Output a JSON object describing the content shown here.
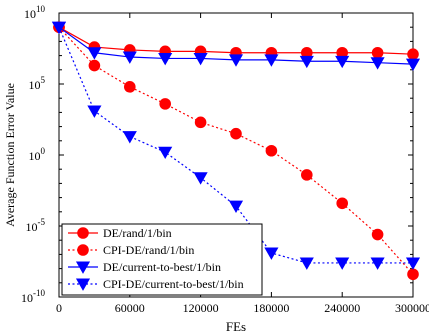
{
  "chart_data": {
    "type": "line",
    "title": "",
    "xlabel": "FEs",
    "ylabel": "Average Function Error Value",
    "xlim": [
      0,
      300000
    ],
    "ylim_log10": [
      -10,
      10
    ],
    "y_scale": "log",
    "grid": false,
    "legend_placement": "bottom-left",
    "x_ticks": [
      0,
      60000,
      120000,
      180000,
      240000,
      300000
    ],
    "x_tick_labels": [
      "0",
      "60000",
      "120000",
      "180000",
      "240000",
      "300000"
    ],
    "y_ticks_exp": [
      -10,
      -5,
      0,
      5,
      10
    ],
    "y_tick_bases": [
      "10",
      "10",
      "10",
      "10",
      "10"
    ],
    "y_tick_exps": [
      "-10",
      "-5",
      "0",
      "5",
      "10"
    ],
    "x": [
      0,
      30000,
      60000,
      90000,
      120000,
      150000,
      180000,
      210000,
      240000,
      270000,
      300000
    ],
    "series": [
      {
        "name": "DE/rand/1/bin",
        "color": "#ff0000",
        "line_style": "solid",
        "marker": "circle",
        "log10_values": [
          9.0,
          7.6,
          7.4,
          7.3,
          7.3,
          7.2,
          7.2,
          7.2,
          7.2,
          7.2,
          7.1
        ]
      },
      {
        "name": "CPI-DE/rand/1/bin",
        "color": "#ff0000",
        "line_style": "dotted",
        "marker": "circle",
        "log10_values": [
          9.0,
          6.3,
          4.8,
          3.6,
          2.3,
          1.5,
          0.3,
          -1.4,
          -3.4,
          -5.6,
          -8.4
        ]
      },
      {
        "name": "DE/current-to-best/1/bin",
        "color": "#0000ff",
        "line_style": "solid",
        "marker": "triangle-down",
        "log10_values": [
          9.0,
          7.2,
          6.9,
          6.8,
          6.8,
          6.7,
          6.7,
          6.6,
          6.6,
          6.5,
          6.4
        ]
      },
      {
        "name": "CPI-DE/current-to-best/1/bin",
        "color": "#0000ff",
        "line_style": "dotted",
        "marker": "triangle-down",
        "log10_values": [
          9.0,
          3.1,
          1.3,
          0.2,
          -1.6,
          -3.6,
          -6.9,
          -7.6,
          -7.6,
          -7.6,
          -7.6
        ]
      }
    ]
  }
}
